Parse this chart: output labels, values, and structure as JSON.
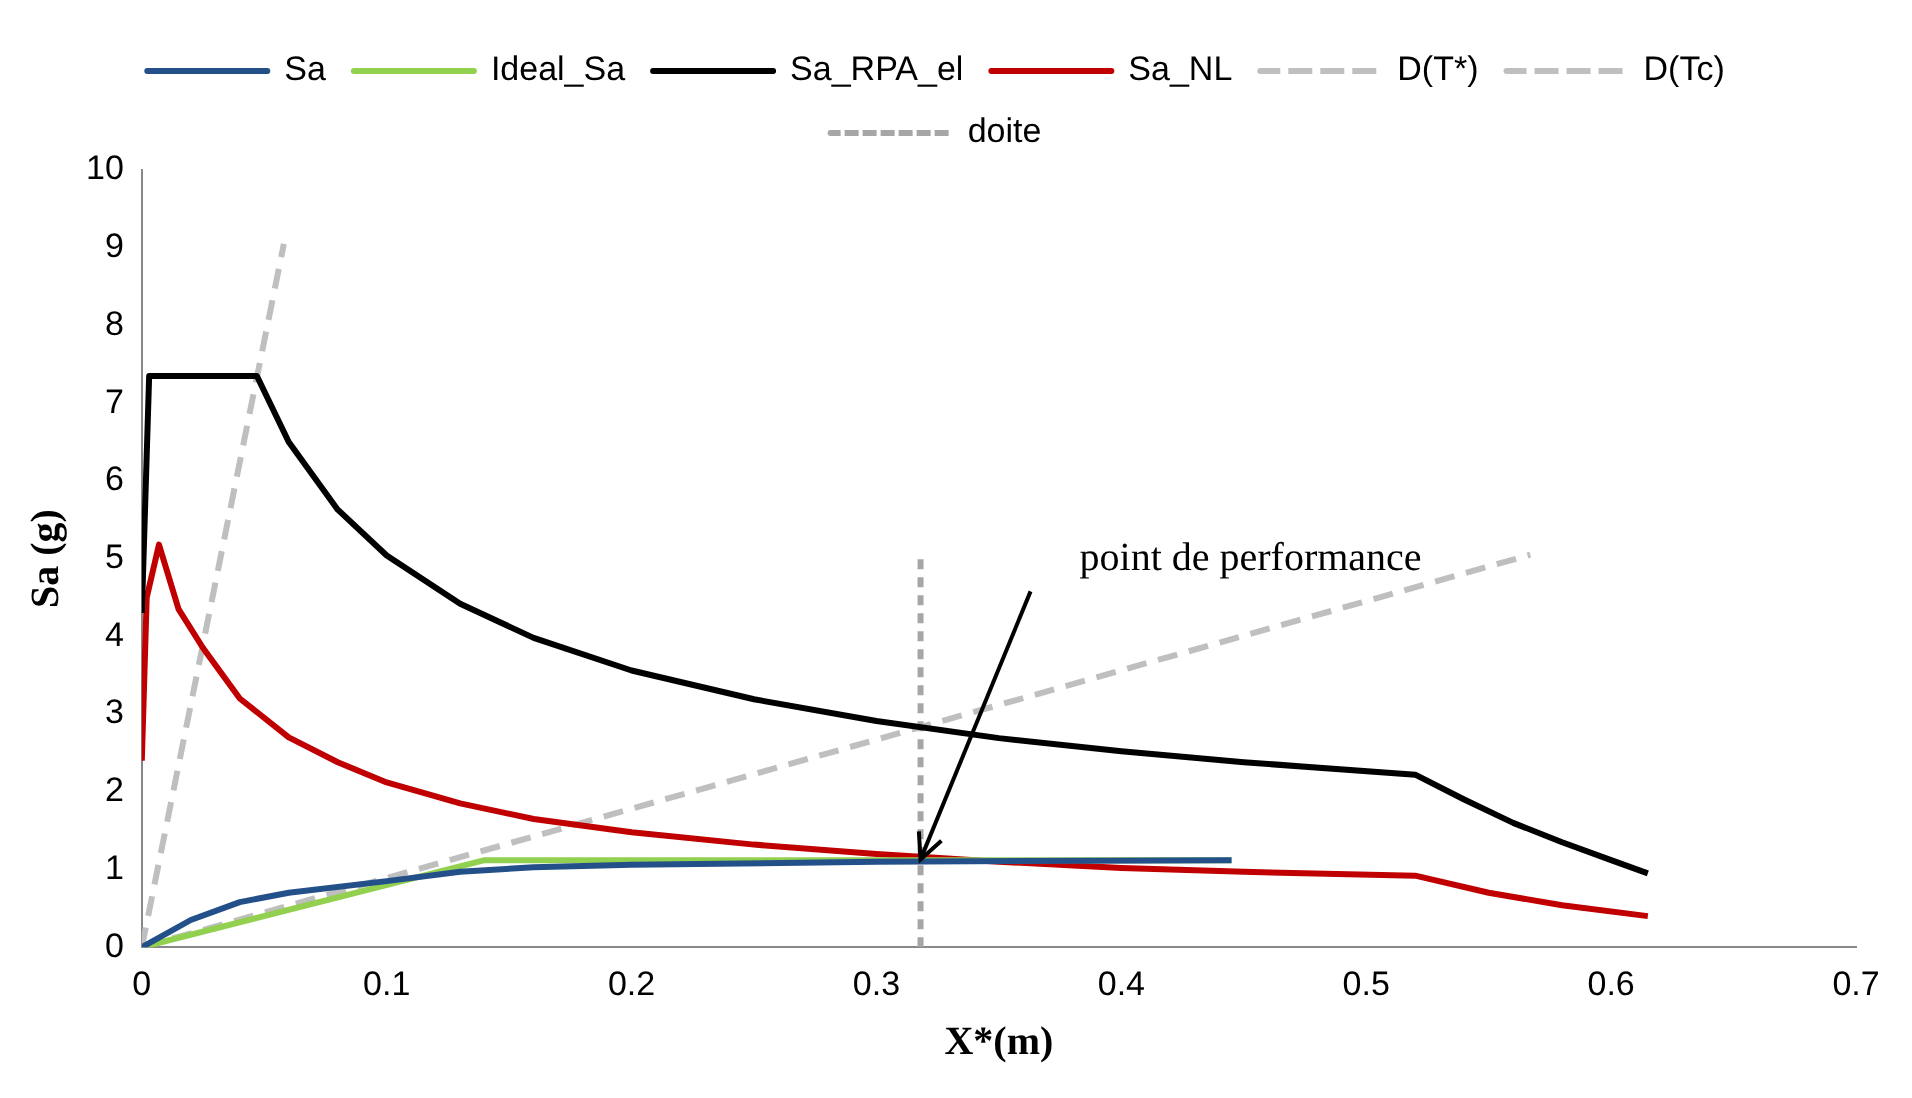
{
  "chart_data": {
    "type": "line",
    "xlabel": "X*(m)",
    "ylabel": "Sa (g)",
    "xlim": [
      0,
      0.7
    ],
    "xticks": [
      0,
      0.1,
      0.2,
      0.3,
      0.4,
      0.5,
      0.6,
      0.7
    ],
    "ylim": [
      0,
      10
    ],
    "yticks": [
      0,
      1,
      2,
      3,
      4,
      5,
      6,
      7,
      8,
      9,
      10
    ],
    "grid": false,
    "legend": "top",
    "marker": "none",
    "annotations": [
      {
        "text": "point de performance",
        "x": 0.318,
        "y": 1.13
      }
    ],
    "series": [
      {
        "name": "Sa",
        "color": "#24508a",
        "line_style": "solid",
        "x": [
          0,
          0.02,
          0.04,
          0.06,
          0.1,
          0.13,
          0.16,
          0.2,
          0.3,
          0.445
        ],
        "values": [
          0,
          0.35,
          0.58,
          0.7,
          0.85,
          0.97,
          1.03,
          1.06,
          1.1,
          1.12
        ]
      },
      {
        "name": "Ideal_Sa",
        "color": "#92d050",
        "line_style": "solid",
        "x": [
          0,
          0.14,
          0.445
        ],
        "values": [
          0,
          1.12,
          1.12
        ]
      },
      {
        "name": "Sa_RPA_el",
        "color": "#000000",
        "line_style": "solid",
        "x": [
          0,
          0.003,
          0.047,
          0.06,
          0.08,
          0.1,
          0.13,
          0.16,
          0.2,
          0.25,
          0.3,
          0.35,
          0.4,
          0.45,
          0.52,
          0.54,
          0.56,
          0.58,
          0.6,
          0.615
        ],
        "values": [
          4.3,
          7.35,
          7.35,
          6.5,
          5.63,
          5.04,
          4.42,
          3.98,
          3.56,
          3.19,
          2.91,
          2.69,
          2.52,
          2.38,
          2.22,
          1.9,
          1.6,
          1.35,
          1.12,
          0.95
        ]
      },
      {
        "name": "Sa_NL",
        "color": "#c00000",
        "line_style": "solid",
        "x": [
          0,
          0.002,
          0.007,
          0.015,
          0.025,
          0.04,
          0.06,
          0.08,
          0.1,
          0.13,
          0.16,
          0.2,
          0.25,
          0.3,
          0.35,
          0.4,
          0.45,
          0.52,
          0.55,
          0.58,
          0.615
        ],
        "values": [
          2.4,
          4.5,
          5.18,
          4.35,
          3.85,
          3.2,
          2.7,
          2.38,
          2.12,
          1.85,
          1.65,
          1.48,
          1.32,
          1.2,
          1.1,
          1.02,
          0.97,
          0.92,
          0.7,
          0.54,
          0.4
        ]
      },
      {
        "name": "D(T*)",
        "color": "#bfbfbf",
        "line_style": "dashed",
        "x": [
          0,
          0.567
        ],
        "values": [
          0,
          5.05
        ]
      },
      {
        "name": "D(Tc)",
        "color": "#bfbfbf",
        "line_style": "dashed",
        "x": [
          0,
          0.058
        ],
        "values": [
          0,
          9.05
        ]
      },
      {
        "name": "doite",
        "color": "#a6a6a6",
        "line_style": "dotted",
        "x": [
          0.318,
          0.318
        ],
        "values": [
          0,
          5.05
        ]
      }
    ]
  }
}
